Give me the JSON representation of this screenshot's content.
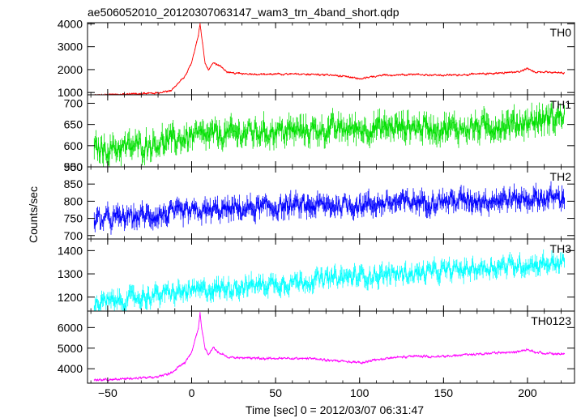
{
  "title": "ae506052010_20120307063147_wam3_trn_4band_short.qdp",
  "ylabel": "Counts/sec",
  "xlabel": "Time [sec] 0 = 2012/03/07 06:31:47",
  "chart_data": {
    "type": "line",
    "title": "ae506052010_20120307063147_wam3_trn_4band_short.qdp",
    "xlabel": "Time [sec] 0 = 2012/03/07 06:31:47",
    "ylabel": "Counts/sec",
    "xlim": [
      -62,
      228
    ],
    "x_ticks": [
      -50,
      0,
      50,
      100,
      150,
      200
    ],
    "x_tick_labels": [
      "−50",
      "0",
      "50",
      "100",
      "150",
      "200"
    ],
    "x_range": [
      -58,
      222
    ],
    "x_step": 0.5,
    "panels": [
      {
        "name": "TH0",
        "color": "#ff0000",
        "ylim": [
          900,
          4050
        ],
        "yticks": [
          1000,
          2000,
          3000,
          4000
        ],
        "ytick_labels": [
          "1000",
          "2000",
          "3000",
          "4000"
        ],
        "baseline_points": [
          [
            -58,
            880
          ],
          [
            -40,
            930
          ],
          [
            -20,
            980
          ],
          [
            -12,
            1100
          ],
          [
            -8,
            1400
          ],
          [
            -4,
            1700
          ],
          [
            0,
            2300
          ],
          [
            2,
            2900
          ],
          [
            4,
            3500
          ],
          [
            5,
            4000
          ],
          [
            6,
            3400
          ],
          [
            8,
            2300
          ],
          [
            10,
            2000
          ],
          [
            13,
            2300
          ],
          [
            17,
            2150
          ],
          [
            22,
            1850
          ],
          [
            40,
            1800
          ],
          [
            70,
            1800
          ],
          [
            85,
            1750
          ],
          [
            100,
            1600
          ],
          [
            115,
            1750
          ],
          [
            130,
            1800
          ],
          [
            150,
            1750
          ],
          [
            170,
            1800
          ],
          [
            195,
            1900
          ],
          [
            200,
            2050
          ],
          [
            205,
            1900
          ],
          [
            222,
            1850
          ]
        ],
        "noise": 45
      },
      {
        "name": "TH1",
        "color": "#00e000",
        "ylim": [
          550,
          720
        ],
        "yticks": [
          550,
          600,
          650,
          700
        ],
        "ytick_labels": [
          "550",
          "600",
          "650",
          "700"
        ],
        "baseline_points": [
          [
            -58,
            590
          ],
          [
            -30,
            600
          ],
          [
            0,
            620
          ],
          [
            30,
            630
          ],
          [
            60,
            635
          ],
          [
            100,
            640
          ],
          [
            130,
            645
          ],
          [
            160,
            640
          ],
          [
            190,
            650
          ],
          [
            222,
            670
          ]
        ],
        "noise": 30
      },
      {
        "name": "TH2",
        "color": "#0000ff",
        "ylim": [
          690,
          900
        ],
        "yticks": [
          700,
          750,
          800,
          850,
          900
        ],
        "ytick_labels": [
          "700",
          "750",
          "800",
          "850",
          "900"
        ],
        "baseline_points": [
          [
            -58,
            745
          ],
          [
            -20,
            760
          ],
          [
            20,
            775
          ],
          [
            60,
            785
          ],
          [
            100,
            790
          ],
          [
            140,
            800
          ],
          [
            180,
            805
          ],
          [
            222,
            810
          ]
        ],
        "noise": 30
      },
      {
        "name": "TH3",
        "color": "#00ffff",
        "ylim": [
          1140,
          1450
        ],
        "yticks": [
          1200,
          1300,
          1400
        ],
        "ytick_labels": [
          "1200",
          "1300",
          "1400"
        ],
        "baseline_points": [
          [
            -58,
            1170
          ],
          [
            -20,
            1210
          ],
          [
            20,
            1240
          ],
          [
            60,
            1265
          ],
          [
            100,
            1290
          ],
          [
            140,
            1305
          ],
          [
            180,
            1330
          ],
          [
            222,
            1350
          ]
        ],
        "noise": 40
      },
      {
        "name": "TH0123",
        "color": "#ff00ff",
        "ylim": [
          3300,
          6800
        ],
        "yticks": [
          4000,
          5000,
          6000
        ],
        "ytick_labels": [
          "4000",
          "5000",
          "6000"
        ],
        "baseline_points": [
          [
            -58,
            3450
          ],
          [
            -40,
            3500
          ],
          [
            -20,
            3600
          ],
          [
            -12,
            3800
          ],
          [
            -8,
            4100
          ],
          [
            -4,
            4300
          ],
          [
            0,
            4800
          ],
          [
            2,
            5400
          ],
          [
            4,
            6000
          ],
          [
            5,
            6700
          ],
          [
            6,
            6000
          ],
          [
            8,
            5000
          ],
          [
            10,
            4700
          ],
          [
            13,
            5000
          ],
          [
            17,
            4750
          ],
          [
            22,
            4550
          ],
          [
            40,
            4500
          ],
          [
            70,
            4500
          ],
          [
            85,
            4400
          ],
          [
            100,
            4300
          ],
          [
            115,
            4500
          ],
          [
            130,
            4600
          ],
          [
            150,
            4600
          ],
          [
            170,
            4700
          ],
          [
            195,
            4850
          ],
          [
            200,
            4950
          ],
          [
            205,
            4800
          ],
          [
            222,
            4700
          ]
        ],
        "noise": 60
      }
    ]
  }
}
